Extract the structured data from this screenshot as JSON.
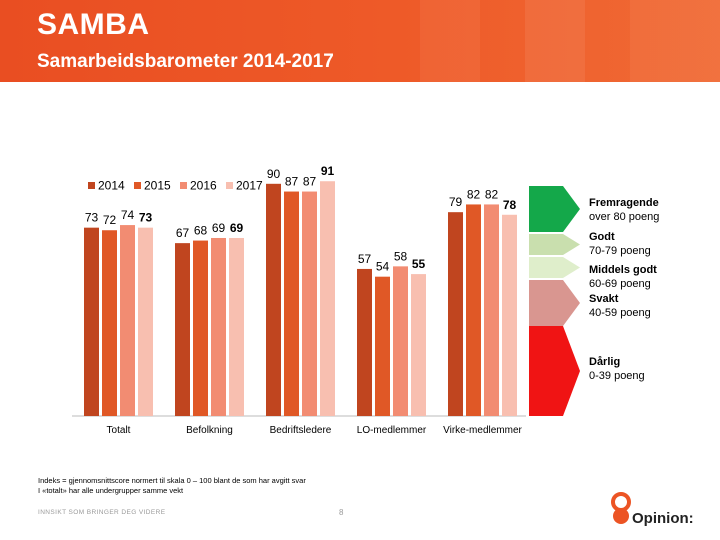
{
  "header": {
    "title": "SAMBA",
    "subtitle": "Samarbeidsbarometer 2014-2017"
  },
  "colors": {
    "header": "#ec5424",
    "series": [
      "#c0451f",
      "#e05826",
      "#f28c72",
      "#f8bfb0"
    ],
    "scale": [
      "#14a84a",
      "#c9dfae",
      "#dfeecb",
      "#d99690",
      "#f01414"
    ]
  },
  "chart_data": {
    "type": "bar",
    "categories": [
      "Totalt",
      "Befolkning",
      "Bedriftsledere",
      "LO-medlemmer",
      "Virke-medlemmer"
    ],
    "series": [
      {
        "name": "2014",
        "values": [
          73,
          67,
          90,
          57,
          79
        ]
      },
      {
        "name": "2015",
        "values": [
          72,
          68,
          87,
          54,
          82
        ]
      },
      {
        "name": "2016",
        "values": [
          74,
          69,
          87,
          58,
          82
        ]
      },
      {
        "name": "2017",
        "values": [
          73,
          69,
          91,
          55,
          78
        ]
      }
    ],
    "bold_series": "2017",
    "ylim": [
      0,
      100
    ],
    "legend_position": "top-left",
    "grid": false
  },
  "scale": [
    {
      "label": "Fremragende",
      "range": "over 80 poeng"
    },
    {
      "label": "Godt",
      "range": "70-79 poeng"
    },
    {
      "label": "",
      "range": ""
    },
    {
      "label": "Middels godt",
      "range": "60-69 poeng"
    },
    {
      "label": "Svakt",
      "range": "40-59 poeng"
    },
    {
      "label": "Dårlig",
      "range": "0-39 poeng"
    }
  ],
  "footnote": {
    "line1": "Indeks = gjennomsnittscore normert til skala  0 – 100 blant de som har avgitt svar",
    "line2": "I «totalt» har alle undergrupper samme vekt"
  },
  "footer": {
    "tagline": "INNSIKT SOM BRINGER DEG VIDERE",
    "page": "8",
    "brand": "Opinion:"
  }
}
